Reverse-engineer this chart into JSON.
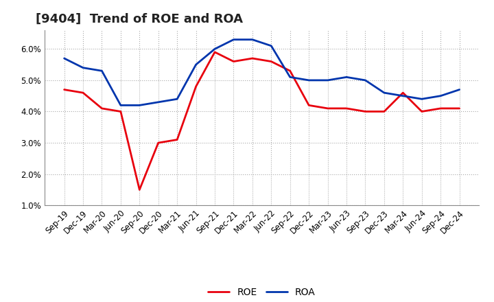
{
  "title": "[9404]  Trend of ROE and ROA",
  "labels": [
    "Sep-19",
    "Dec-19",
    "Mar-20",
    "Jun-20",
    "Sep-20",
    "Dec-20",
    "Mar-21",
    "Jun-21",
    "Sep-21",
    "Dec-21",
    "Mar-22",
    "Jun-22",
    "Sep-22",
    "Dec-22",
    "Mar-23",
    "Jun-23",
    "Sep-23",
    "Dec-23",
    "Mar-24",
    "Jun-24",
    "Sep-24",
    "Dec-24"
  ],
  "ROE": [
    4.7,
    4.6,
    4.1,
    4.0,
    1.5,
    3.0,
    3.1,
    4.8,
    5.9,
    5.6,
    5.7,
    5.6,
    5.3,
    4.2,
    4.1,
    4.1,
    4.0,
    4.0,
    4.6,
    4.0,
    4.1,
    4.1
  ],
  "ROA": [
    5.7,
    5.4,
    5.3,
    4.2,
    4.2,
    4.3,
    4.4,
    5.5,
    6.0,
    6.3,
    6.3,
    6.1,
    5.1,
    5.0,
    5.0,
    5.1,
    5.0,
    4.6,
    4.5,
    4.4,
    4.5,
    4.7
  ],
  "roe_color": "#e8000d",
  "roa_color": "#0035ad",
  "ylim": [
    1.0,
    6.6
  ],
  "yticks": [
    1.0,
    2.0,
    3.0,
    4.0,
    5.0,
    6.0
  ],
  "grid_color": "#aaaaaa",
  "background_color": "#ffffff",
  "plot_bg_color": "#ffffff",
  "title_fontsize": 13,
  "legend_fontsize": 10,
  "tick_fontsize": 8.5,
  "line_width": 2.0
}
